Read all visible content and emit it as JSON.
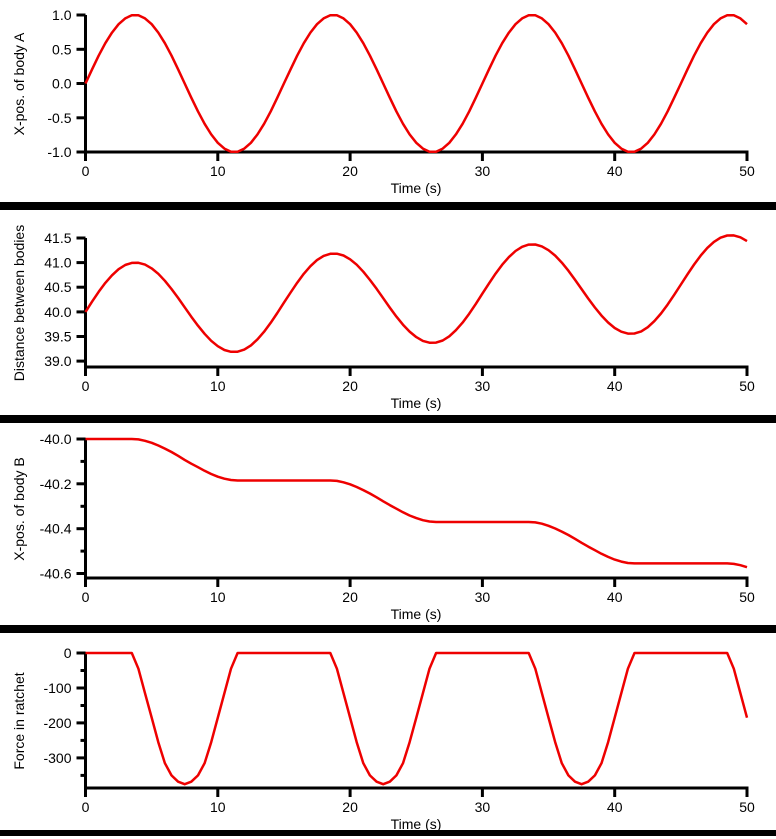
{
  "page": {
    "background": "#ffffff",
    "separator_color": "#000000",
    "axis_color": "#000000",
    "text_color": "#000000"
  },
  "chart_data": [
    {
      "type": "line",
      "ylabel": "X-pos. of body A",
      "xlabel": "Time (s)",
      "line_color": "#ee0000",
      "xlim": [
        0,
        50
      ],
      "ylim": [
        -1.0,
        1.0
      ],
      "x_ticks": [
        0,
        10,
        20,
        30,
        40,
        50
      ],
      "x_tick_labels": [
        "0",
        "10",
        "20",
        "30",
        "40",
        "50"
      ],
      "y_ticks": [
        1.0,
        0.5,
        0.0,
        -0.5,
        -1.0
      ],
      "y_tick_labels": [
        "1.0",
        "0.5",
        "0.0",
        "-0.5",
        "-1.0"
      ],
      "y_minor_ticks": [],
      "x_start": 0,
      "x_step": 0.5,
      "values": [
        0,
        0.208,
        0.407,
        0.588,
        0.743,
        0.866,
        0.951,
        0.995,
        0.995,
        0.951,
        0.866,
        0.743,
        0.588,
        0.407,
        0.208,
        0,
        -0.208,
        -0.407,
        -0.588,
        -0.743,
        -0.866,
        -0.951,
        -0.995,
        -0.995,
        -0.951,
        -0.866,
        -0.743,
        -0.588,
        -0.407,
        -0.208,
        0,
        0.208,
        0.407,
        0.588,
        0.743,
        0.866,
        0.951,
        0.995,
        0.995,
        0.951,
        0.866,
        0.743,
        0.588,
        0.407,
        0.208,
        0,
        -0.208,
        -0.407,
        -0.588,
        -0.743,
        -0.866,
        -0.951,
        -0.995,
        -0.995,
        -0.951,
        -0.866,
        -0.743,
        -0.588,
        -0.407,
        -0.208,
        0,
        0.208,
        0.407,
        0.588,
        0.743,
        0.866,
        0.951,
        0.995,
        0.995,
        0.951,
        0.866,
        0.743,
        0.588,
        0.407,
        0.208,
        0,
        -0.208,
        -0.407,
        -0.588,
        -0.743,
        -0.866,
        -0.951,
        -0.995,
        -0.995,
        -0.951,
        -0.866,
        -0.743,
        -0.588,
        -0.407,
        -0.208,
        0,
        0.208,
        0.407,
        0.588,
        0.743,
        0.866,
        0.951,
        0.995,
        0.995,
        0.951,
        0.866
      ]
    },
    {
      "type": "line",
      "ylabel": "Distance between bodies",
      "xlabel": "Time (s)",
      "line_color": "#ee0000",
      "xlim": [
        0,
        50
      ],
      "ylim": [
        38.88,
        41.5
      ],
      "x_ticks": [
        0,
        10,
        20,
        30,
        40,
        50
      ],
      "x_tick_labels": [
        "0",
        "10",
        "20",
        "30",
        "40",
        "50"
      ],
      "y_ticks": [
        41.5,
        41.0,
        40.5,
        40.0,
        39.5,
        39.0
      ],
      "y_tick_labels": [
        "41.5",
        "41.0",
        "40.5",
        "40.0",
        "39.5",
        "39.0"
      ],
      "y_minor_ticks": [],
      "x_start": 0,
      "x_step": 0.5,
      "values": [
        40.0,
        40.208,
        40.407,
        40.588,
        40.743,
        40.866,
        40.951,
        40.995,
        40.997,
        40.959,
        40.883,
        40.772,
        40.631,
        40.465,
        40.283,
        40.093,
        39.902,
        39.719,
        39.554,
        39.413,
        39.302,
        39.226,
        39.188,
        39.19,
        39.234,
        39.319,
        39.442,
        39.597,
        39.778,
        39.977,
        40.185,
        40.393,
        40.592,
        40.773,
        40.928,
        41.051,
        41.136,
        41.18,
        41.182,
        41.144,
        41.068,
        40.957,
        40.816,
        40.65,
        40.468,
        40.278,
        40.087,
        39.904,
        39.739,
        39.598,
        39.487,
        39.411,
        39.373,
        39.375,
        39.419,
        39.504,
        39.627,
        39.782,
        39.963,
        40.162,
        40.37,
        40.578,
        40.777,
        40.958,
        41.113,
        41.236,
        41.321,
        41.365,
        41.367,
        41.329,
        41.253,
        41.142,
        41.001,
        40.835,
        40.653,
        40.463,
        40.272,
        40.089,
        39.924,
        39.783,
        39.672,
        39.596,
        39.558,
        39.56,
        39.604,
        39.689,
        39.812,
        39.967,
        40.148,
        40.347,
        40.555,
        40.763,
        40.962,
        41.143,
        41.298,
        41.421,
        41.506,
        41.55,
        41.552,
        41.514,
        41.438
      ]
    },
    {
      "type": "line",
      "ylabel": "X-pos. of body B",
      "xlabel": "Time (s)",
      "line_color": "#ee0000",
      "xlim": [
        0,
        50
      ],
      "ylim": [
        -40.62,
        -40.0
      ],
      "x_ticks": [
        0,
        10,
        20,
        30,
        40,
        50
      ],
      "x_tick_labels": [
        "0",
        "10",
        "20",
        "30",
        "40",
        "50"
      ],
      "y_ticks": [
        -40.0,
        -40.2,
        -40.4,
        -40.6
      ],
      "y_tick_labels": [
        "-40.0",
        "-40.2",
        "-40.4",
        "-40.6"
      ],
      "y_minor_ticks": [
        -40.1,
        -40.3,
        -40.5
      ],
      "x_start": 0,
      "x_step": 0.5,
      "values": [
        -40,
        -40,
        -40,
        -40,
        -40,
        -40,
        -40,
        -40,
        -40.002,
        -40.008,
        -40.017,
        -40.029,
        -40.043,
        -40.058,
        -40.075,
        -40.093,
        -40.11,
        -40.126,
        -40.142,
        -40.156,
        -40.168,
        -40.177,
        -40.183,
        -40.185,
        -40.185,
        -40.185,
        -40.185,
        -40.185,
        -40.185,
        -40.185,
        -40.185,
        -40.185,
        -40.185,
        -40.185,
        -40.185,
        -40.185,
        -40.185,
        -40.185,
        -40.187,
        -40.193,
        -40.202,
        -40.214,
        -40.228,
        -40.243,
        -40.26,
        -40.278,
        -40.295,
        -40.311,
        -40.327,
        -40.341,
        -40.353,
        -40.362,
        -40.368,
        -40.37,
        -40.37,
        -40.37,
        -40.37,
        -40.37,
        -40.37,
        -40.37,
        -40.37,
        -40.37,
        -40.37,
        -40.37,
        -40.37,
        -40.37,
        -40.37,
        -40.37,
        -40.372,
        -40.378,
        -40.387,
        -40.399,
        -40.413,
        -40.428,
        -40.445,
        -40.463,
        -40.48,
        -40.496,
        -40.512,
        -40.526,
        -40.538,
        -40.547,
        -40.553,
        -40.555,
        -40.555,
        -40.555,
        -40.555,
        -40.555,
        -40.555,
        -40.555,
        -40.555,
        -40.555,
        -40.555,
        -40.555,
        -40.555,
        -40.555,
        -40.555,
        -40.555,
        -40.557,
        -40.563,
        -40.572
      ]
    },
    {
      "type": "line",
      "ylabel": "Force in ratchet",
      "xlabel": "Time (s)",
      "line_color": "#ee0000",
      "xlim": [
        0,
        50
      ],
      "ylim": [
        -386,
        0
      ],
      "x_ticks": [
        0,
        10,
        20,
        30,
        40,
        50
      ],
      "x_tick_labels": [
        "0",
        "10",
        "20",
        "30",
        "40",
        "50"
      ],
      "y_ticks": [
        0,
        -100,
        -200,
        -300
      ],
      "y_tick_labels": [
        "0",
        "-100",
        "-200",
        "-300"
      ],
      "y_minor_ticks": [
        -50,
        -150,
        -250,
        -350
      ],
      "x_start": 0,
      "x_step": 0.5,
      "values": [
        0,
        0,
        0,
        0,
        0,
        0,
        0,
        0,
        -45,
        -115,
        -185,
        -255,
        -315,
        -350,
        -368,
        -375,
        -368,
        -350,
        -315,
        -255,
        -185,
        -115,
        -45,
        0,
        0,
        0,
        0,
        0,
        0,
        0,
        0,
        0,
        0,
        0,
        0,
        0,
        0,
        0,
        -45,
        -115,
        -185,
        -255,
        -315,
        -350,
        -368,
        -375,
        -368,
        -350,
        -315,
        -255,
        -185,
        -115,
        -45,
        0,
        0,
        0,
        0,
        0,
        0,
        0,
        0,
        0,
        0,
        0,
        0,
        0,
        0,
        0,
        -45,
        -115,
        -185,
        -255,
        -315,
        -350,
        -368,
        -375,
        -368,
        -350,
        -315,
        -255,
        -185,
        -115,
        -45,
        0,
        0,
        0,
        0,
        0,
        0,
        0,
        0,
        0,
        0,
        0,
        0,
        0,
        0,
        0,
        -45,
        -115,
        -185
      ]
    }
  ]
}
